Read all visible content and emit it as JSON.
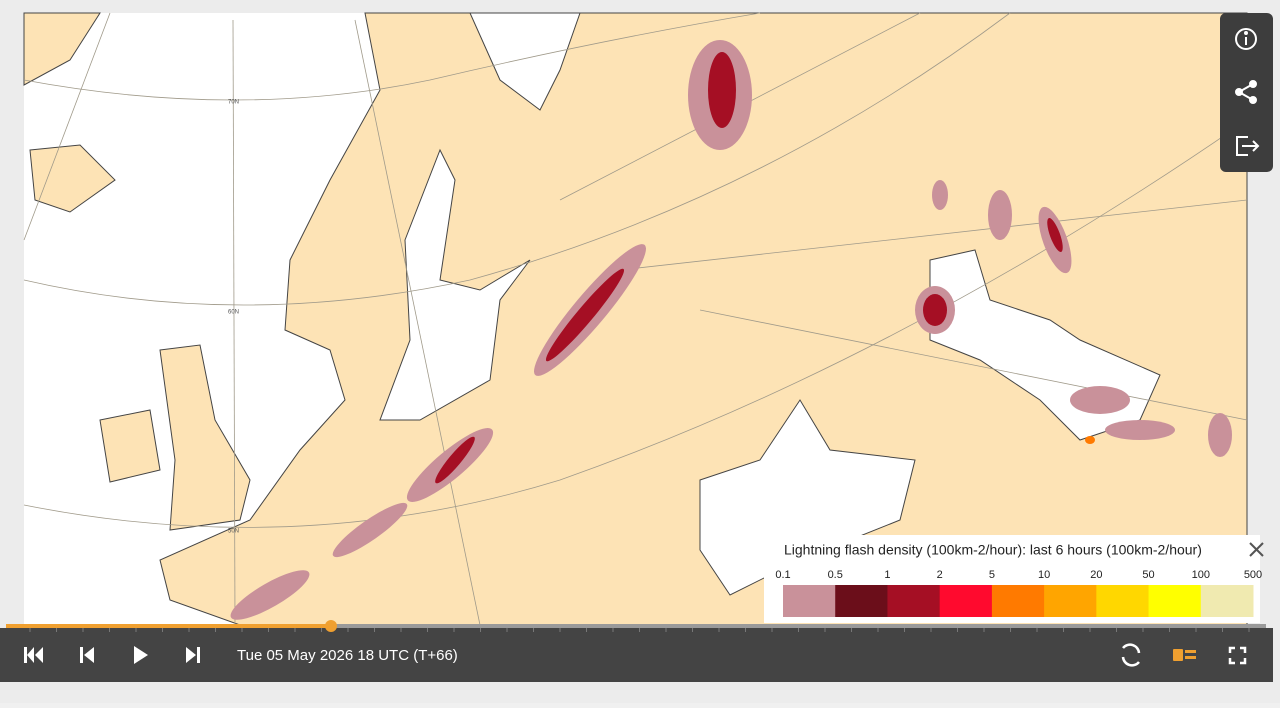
{
  "map": {
    "latitude_labels": [
      "70N",
      "60N",
      "50N"
    ]
  },
  "legend": {
    "title": "Lightning flash density (100km-2/hour): last 6 hours (100km-2/hour)",
    "ticks": [
      0.1,
      0.5,
      1,
      2,
      5,
      10,
      20,
      50,
      100,
      500
    ],
    "colors": [
      "#c9919a",
      "#6b0e1a",
      "#a50f24",
      "#ff0a2e",
      "#ff7a00",
      "#ffa500",
      "#ffd700",
      "#ffff00",
      "#f0eab0"
    ]
  },
  "timeline": {
    "timestamp": "Tue 05 May 2026 18 UTC (T+66)"
  }
}
